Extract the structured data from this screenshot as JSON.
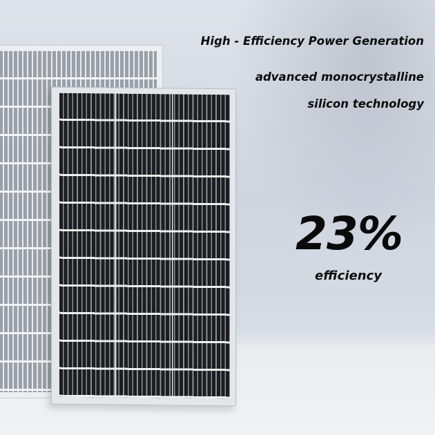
{
  "headline": "High - Efficiency Power Generation",
  "subline_1": "advanced monocrystalline",
  "subline_2": "silicon technology",
  "stat": {
    "value": "23%",
    "label": "efficiency"
  },
  "colors": {
    "text": "#0d0d0d",
    "background": "#d6dce4",
    "cell": "#1c1d20"
  }
}
